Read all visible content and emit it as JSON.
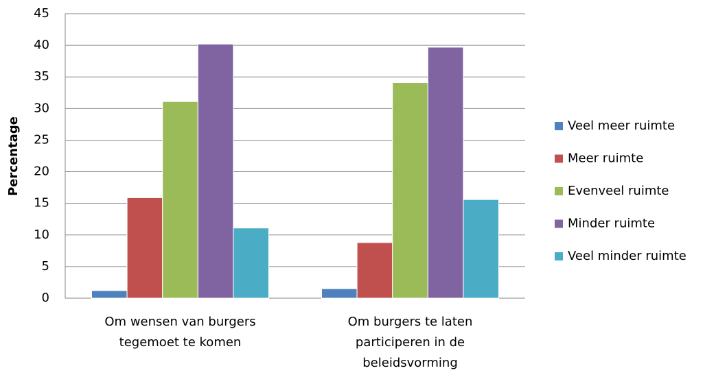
{
  "chart_data": {
    "type": "bar",
    "ylabel": "Percentage",
    "categories": [
      "Om wensen van burgers tegemoet te komen",
      "Om burgers te laten participeren in de beleidsvorming"
    ],
    "series": [
      {
        "name": "Veel meer ruimte",
        "color": "#4f81bd",
        "values": [
          1.2,
          1.5
        ]
      },
      {
        "name": "Meer ruimte",
        "color": "#c0504d",
        "values": [
          15.9,
          8.8
        ]
      },
      {
        "name": "Evenveel ruimte",
        "color": "#9bbb59",
        "values": [
          31.1,
          34.1
        ]
      },
      {
        "name": "Minder ruimte",
        "color": "#8064a2",
        "values": [
          40.2,
          39.7
        ]
      },
      {
        "name": "Veel minder ruimte",
        "color": "#4bacc6",
        "values": [
          11.1,
          15.6
        ]
      }
    ],
    "ylim": [
      0,
      45
    ],
    "yticks": [
      0,
      5,
      10,
      15,
      20,
      25,
      30,
      35,
      40,
      45
    ],
    "grid": true,
    "legend": "right"
  }
}
